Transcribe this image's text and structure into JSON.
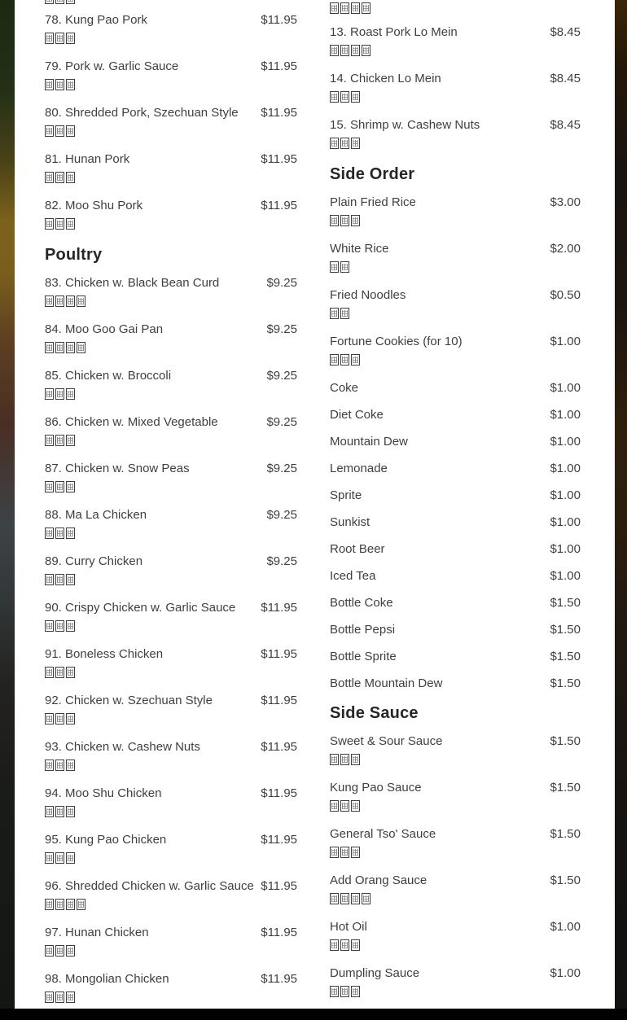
{
  "colors": {
    "page_background": "#000000",
    "content_background": "#ffffff",
    "item_text": "#3f3f3f",
    "heading_text": "#262626",
    "bottom_bar": "#020202"
  },
  "menu": {
    "left_column": {
      "leading_cjk_boxes": 3,
      "sections": [
        {
          "heading": null,
          "items": [
            {
              "name": "78. Kung Pao Pork",
              "price": "$11.95",
              "cjk_boxes": 3
            },
            {
              "name": "79. Pork w. Garlic Sauce",
              "price": "$11.95",
              "cjk_boxes": 3
            },
            {
              "name": "80. Shredded Pork, Szechuan Style",
              "price": "$11.95",
              "cjk_boxes": 3
            },
            {
              "name": "81. Hunan Pork",
              "price": "$11.95",
              "cjk_boxes": 3
            },
            {
              "name": "82. Moo Shu Pork",
              "price": "$11.95",
              "cjk_boxes": 3
            }
          ]
        },
        {
          "heading": "Poultry",
          "items": [
            {
              "name": "83. Chicken w. Black Bean Curd",
              "price": "$9.25",
              "cjk_boxes": 4
            },
            {
              "name": "84. Moo Goo Gai Pan",
              "price": "$9.25",
              "cjk_boxes": 4
            },
            {
              "name": "85. Chicken w. Broccoli",
              "price": "$9.25",
              "cjk_boxes": 3
            },
            {
              "name": "86. Chicken w. Mixed Vegetable",
              "price": "$9.25",
              "cjk_boxes": 3
            },
            {
              "name": "87. Chicken w. Snow Peas",
              "price": "$9.25",
              "cjk_boxes": 3
            },
            {
              "name": "88. Ma La Chicken",
              "price": "$9.25",
              "cjk_boxes": 3
            },
            {
              "name": "89. Curry Chicken",
              "price": "$9.25",
              "cjk_boxes": 3
            },
            {
              "name": "90. Crispy Chicken w. Garlic Sauce",
              "price": "$11.95",
              "cjk_boxes": 3
            },
            {
              "name": "91. Boneless Chicken",
              "price": "$11.95",
              "cjk_boxes": 3
            },
            {
              "name": "92. Chicken w. Szechuan Style",
              "price": "$11.95",
              "cjk_boxes": 3
            },
            {
              "name": "93. Chicken w. Cashew Nuts",
              "price": "$11.95",
              "cjk_boxes": 3
            },
            {
              "name": "94. Moo Shu Chicken",
              "price": "$11.95",
              "cjk_boxes": 3
            },
            {
              "name": "95. Kung Pao Chicken",
              "price": "$11.95",
              "cjk_boxes": 3
            },
            {
              "name": "96. Shredded Chicken w. Garlic Sauce",
              "price": "$11.95",
              "cjk_boxes": 4
            },
            {
              "name": "97. Hunan Chicken",
              "price": "$11.95",
              "cjk_boxes": 3
            },
            {
              "name": "98. Mongolian Chicken",
              "price": "$11.95",
              "cjk_boxes": 3
            }
          ]
        }
      ]
    },
    "right_column": {
      "leading_cjk_boxes": 4,
      "sections": [
        {
          "heading": null,
          "items": [
            {
              "name": "13. Roast Pork Lo Mein",
              "price": "$8.45",
              "cjk_boxes": 4
            },
            {
              "name": "14. Chicken Lo Mein",
              "price": "$8.45",
              "cjk_boxes": 3
            },
            {
              "name": "15. Shrimp w. Cashew Nuts",
              "price": "$8.45",
              "cjk_boxes": 3
            }
          ]
        },
        {
          "heading": "Side Order",
          "items": [
            {
              "name": "Plain Fried Rice",
              "price": "$3.00",
              "cjk_boxes": 3
            },
            {
              "name": "White Rice",
              "price": "$2.00",
              "cjk_boxes": 2
            },
            {
              "name": "Fried Noodles",
              "price": "$0.50",
              "cjk_boxes": 2
            },
            {
              "name": "Fortune Cookies (for 10)",
              "price": "$1.00",
              "cjk_boxes": 3
            },
            {
              "name": "Coke",
              "price": "$1.00",
              "cjk_boxes": 0
            },
            {
              "name": "Diet Coke",
              "price": "$1.00",
              "cjk_boxes": 0
            },
            {
              "name": "Mountain Dew",
              "price": "$1.00",
              "cjk_boxes": 0
            },
            {
              "name": "Lemonade",
              "price": "$1.00",
              "cjk_boxes": 0
            },
            {
              "name": "Sprite",
              "price": "$1.00",
              "cjk_boxes": 0
            },
            {
              "name": "Sunkist",
              "price": "$1.00",
              "cjk_boxes": 0
            },
            {
              "name": "Root Beer",
              "price": "$1.00",
              "cjk_boxes": 0
            },
            {
              "name": "Iced Tea",
              "price": "$1.00",
              "cjk_boxes": 0
            },
            {
              "name": "Bottle Coke",
              "price": "$1.50",
              "cjk_boxes": 0
            },
            {
              "name": "Bottle Pepsi",
              "price": "$1.50",
              "cjk_boxes": 0
            },
            {
              "name": "Bottle Sprite",
              "price": "$1.50",
              "cjk_boxes": 0
            },
            {
              "name": "Bottle Mountain Dew",
              "price": "$1.50",
              "cjk_boxes": 0
            }
          ]
        },
        {
          "heading": "Side Sauce",
          "items": [
            {
              "name": "Sweet & Sour Sauce",
              "price": "$1.50",
              "cjk_boxes": 3
            },
            {
              "name": "Kung Pao Sauce",
              "price": "$1.50",
              "cjk_boxes": 3
            },
            {
              "name": "General Tso' Sauce",
              "price": "$1.50",
              "cjk_boxes": 3
            },
            {
              "name": "Add Orang Sauce",
              "price": "$1.50",
              "cjk_boxes": 4
            },
            {
              "name": "Hot Oil",
              "price": "$1.00",
              "cjk_boxes": 3
            },
            {
              "name": "Dumpling Sauce",
              "price": "$1.00",
              "cjk_boxes": 3
            }
          ]
        }
      ]
    }
  }
}
